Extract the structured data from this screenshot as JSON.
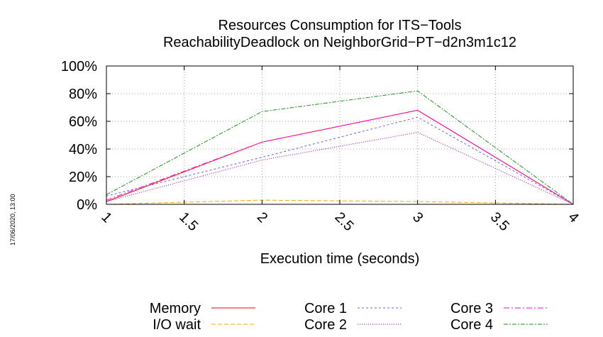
{
  "chart_data": {
    "type": "line",
    "title": "Resources Consumption for ITS−Tools",
    "subtitle": "ReachabilityDeadlock on NeighborGrid−PT−d2n3m1c12",
    "xlabel": "Execution time (seconds)",
    "ylabel": "",
    "xlim": [
      1,
      4
    ],
    "ylim": [
      0,
      100
    ],
    "x_ticks": [
      "1",
      "1.5",
      "2",
      "2.5",
      "3",
      "3.5",
      "4"
    ],
    "y_ticks": [
      "0%",
      "20%",
      "40%",
      "60%",
      "80%",
      "100%"
    ],
    "grid": true,
    "legend_position": "bottom",
    "x": [
      1,
      2,
      3,
      4
    ],
    "series": [
      {
        "name": "Memory",
        "color": "#ff0000",
        "dash": "",
        "values": [
          2,
          45,
          68,
          0
        ]
      },
      {
        "name": "I/O wait",
        "color": "#ffa500",
        "dash": "6,3",
        "values": [
          0,
          3,
          2,
          0
        ]
      },
      {
        "name": "Core 1",
        "color": "#6464e6",
        "dash": "3,3",
        "values": [
          6,
          34,
          63,
          0
        ]
      },
      {
        "name": "Core 2",
        "color": "#9400d3",
        "dash": "1,2",
        "values": [
          2,
          32,
          52,
          0
        ]
      },
      {
        "name": "Core 3",
        "color": "#ff00ff",
        "dash": "8,3,2,3",
        "values": [
          3,
          45,
          68,
          0
        ]
      },
      {
        "name": "Core 4",
        "color": "#228b22",
        "dash": "6,2,2,2",
        "values": [
          7,
          67,
          82,
          0
        ]
      }
    ]
  },
  "footer": {
    "timestamp": "17/06/2020, 13:00"
  }
}
